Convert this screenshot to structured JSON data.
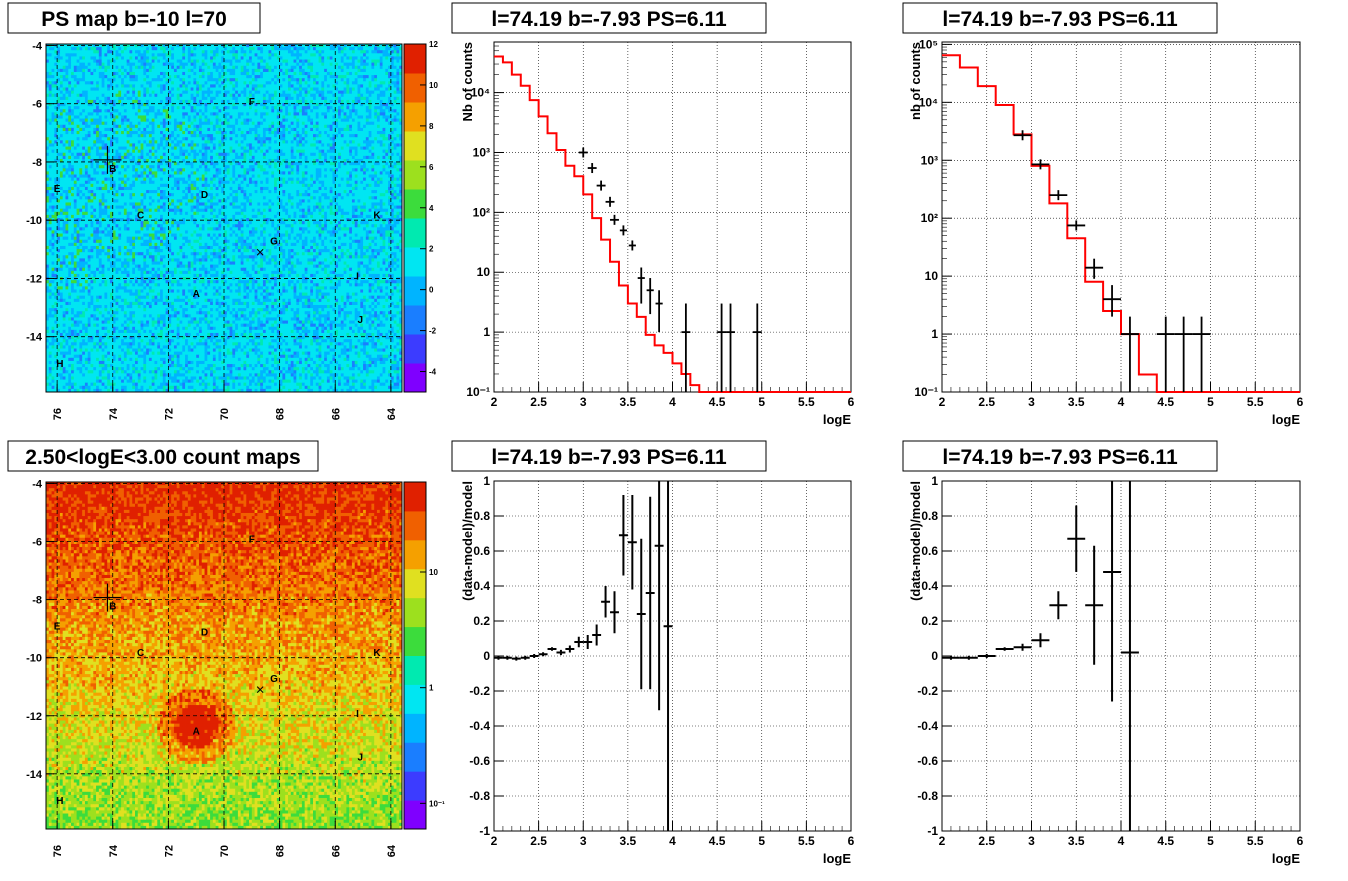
{
  "chart_data": [
    {
      "type": "heatmap",
      "title": "PS map b=-10 l=70",
      "x_ticks": [
        "76",
        "74",
        "72",
        "70",
        "68",
        "66",
        "64"
      ],
      "y_ticks": [
        "-4",
        "-6",
        "-8",
        "-10",
        "-12",
        "-14"
      ],
      "xlim": [
        76.4,
        63.6
      ],
      "ylim": [
        -15.9,
        -3.95
      ],
      "colorbar": {
        "ticks": [
          "12",
          "10",
          "8",
          "6",
          "4",
          "2",
          "0",
          "-2",
          "-4"
        ],
        "range": [
          -5,
          12
        ]
      },
      "source_labels": [
        {
          "name": "F",
          "l": 69.0,
          "b": -5.9
        },
        {
          "name": "B",
          "l": 74.0,
          "b": -8.2
        },
        {
          "name": "E",
          "l": 76.0,
          "b": -8.9
        },
        {
          "name": "D",
          "l": 70.7,
          "b": -9.1
        },
        {
          "name": "C",
          "l": 73.0,
          "b": -9.8
        },
        {
          "name": "K",
          "l": 64.5,
          "b": -9.8
        },
        {
          "name": "G",
          "l": 68.2,
          "b": -10.7
        },
        {
          "name": "I",
          "l": 65.2,
          "b": -11.9
        },
        {
          "name": "A",
          "l": 71.0,
          "b": -12.5
        },
        {
          "name": "J",
          "l": 65.1,
          "b": -13.4
        },
        {
          "name": "H",
          "l": 75.9,
          "b": -14.9
        }
      ],
      "cross_marker": {
        "l": 74.19,
        "b": -7.93
      },
      "x_marker": {
        "l": 68.7,
        "b": -11.1
      },
      "palette": [
        "#7f00ff",
        "#3c3cff",
        "#1a7eff",
        "#00b4ff",
        "#00e6f2",
        "#00eab0",
        "#3cdc3c",
        "#9de01e",
        "#e0e020",
        "#f5a000",
        "#f06000",
        "#e02000"
      ]
    },
    {
      "type": "line",
      "title": "l=74.19 b=-7.93 PS=6.11",
      "xlabel": "logE",
      "ylabel": "Nb of counts",
      "yscale": "log",
      "xlim": [
        2,
        6
      ],
      "ylim": [
        0.1,
        70000
      ],
      "x_ticks": [
        "2",
        "2.5",
        "3",
        "3.5",
        "4",
        "4.5",
        "5",
        "5.5",
        "6"
      ],
      "y_ticks": [
        {
          "v": 0.1,
          "label": "10⁻¹"
        },
        {
          "v": 1,
          "label": "1"
        },
        {
          "v": 10,
          "label": "10"
        },
        {
          "v": 100,
          "label": "10²"
        },
        {
          "v": 1000,
          "label": "10³"
        },
        {
          "v": 10000,
          "label": "10⁴"
        }
      ],
      "model": {
        "color": "#ff0000",
        "edges": [
          2.0,
          2.1,
          2.2,
          2.3,
          2.4,
          2.5,
          2.6,
          2.7,
          2.8,
          2.9,
          3.0,
          3.1,
          3.2,
          3.3,
          3.4,
          3.5,
          3.6,
          3.7,
          3.8,
          3.9,
          4.0,
          4.1,
          4.2,
          4.3,
          4.4,
          4.5,
          4.6,
          4.7,
          4.8,
          4.9,
          5.0,
          6.0
        ],
        "values": [
          40000,
          32000,
          20000,
          13000,
          7500,
          4000,
          2100,
          1100,
          600,
          400,
          200,
          80,
          35,
          15,
          6,
          3,
          1.8,
          0.9,
          0.6,
          0.45,
          0.3,
          0.2,
          0.13,
          0.1,
          0.1,
          0.1,
          0.1,
          0.1,
          0.1,
          0.1,
          0.1
        ]
      },
      "data": [
        {
          "x": 3.0,
          "y": 1000,
          "xerr": 0.05
        },
        {
          "x": 3.1,
          "y": 550,
          "xerr": 0.05
        },
        {
          "x": 3.2,
          "y": 280,
          "xerr": 0.05
        },
        {
          "x": 3.3,
          "y": 150,
          "xerr": 0.05
        },
        {
          "x": 3.35,
          "y": 75,
          "xerr": 0.05
        },
        {
          "x": 3.45,
          "y": 50,
          "xerr": 0.04
        },
        {
          "x": 3.55,
          "y": 28,
          "xerr": 0.04
        },
        {
          "x": 3.65,
          "y": 8,
          "yerr_lo": 3,
          "yerr_hi": 12,
          "xerr": 0.04
        },
        {
          "x": 3.75,
          "y": 5,
          "yerr_lo": 2,
          "yerr_hi": 8,
          "xerr": 0.04
        },
        {
          "x": 3.85,
          "y": 3,
          "yerr_lo": 1,
          "yerr_hi": 5,
          "xerr": 0.04
        },
        {
          "x": 4.15,
          "y": 1,
          "yerr_lo": 0.1,
          "yerr_hi": 3,
          "xerr": 0.05
        },
        {
          "x": 4.55,
          "y": 1,
          "yerr_lo": 0.1,
          "yerr_hi": 3,
          "xerr": 0.05
        },
        {
          "x": 4.65,
          "y": 1,
          "yerr_lo": 0.1,
          "yerr_hi": 3,
          "xerr": 0.05
        },
        {
          "x": 4.95,
          "y": 1,
          "yerr_lo": 0.1,
          "yerr_hi": 3,
          "xerr": 0.05
        }
      ]
    },
    {
      "type": "line",
      "title": "l=74.19 b=-7.93 PS=6.11",
      "xlabel": "logE",
      "ylabel": "nb of counts",
      "yscale": "log",
      "xlim": [
        2,
        6
      ],
      "ylim": [
        0.1,
        110000
      ],
      "x_ticks": [
        "2",
        "2.5",
        "3",
        "3.5",
        "4",
        "4.5",
        "5",
        "5.5",
        "6"
      ],
      "y_ticks": [
        {
          "v": 0.1,
          "label": "10⁻¹"
        },
        {
          "v": 1,
          "label": "1"
        },
        {
          "v": 10,
          "label": "10"
        },
        {
          "v": 100,
          "label": "10²"
        },
        {
          "v": 1000,
          "label": "10³"
        },
        {
          "v": 10000,
          "label": "10⁴"
        },
        {
          "v": 100000,
          "label": "10⁵"
        }
      ],
      "model": {
        "color": "#ff0000",
        "edges": [
          2.0,
          2.2,
          2.4,
          2.6,
          2.8,
          3.0,
          3.2,
          3.4,
          3.6,
          3.8,
          4.0,
          4.2,
          4.4,
          6.0
        ],
        "values": [
          65000,
          40000,
          19000,
          9000,
          2800,
          800,
          180,
          45,
          8,
          2.5,
          1,
          0.2,
          0.1
        ]
      },
      "data": [
        {
          "x": 2.9,
          "y": 2700,
          "xerr": 0.1
        },
        {
          "x": 3.1,
          "y": 850,
          "xerr": 0.1
        },
        {
          "x": 3.3,
          "y": 250,
          "xerr": 0.1
        },
        {
          "x": 3.5,
          "y": 75,
          "xerr": 0.1
        },
        {
          "x": 3.7,
          "y": 14,
          "yerr_lo": 9,
          "yerr_hi": 20,
          "xerr": 0.1
        },
        {
          "x": 3.9,
          "y": 4,
          "yerr_lo": 2,
          "yerr_hi": 7,
          "xerr": 0.1
        },
        {
          "x": 4.1,
          "y": 1,
          "yerr_lo": 0.1,
          "yerr_hi": 2,
          "xerr": 0.1
        },
        {
          "x": 4.5,
          "y": 1,
          "yerr_lo": 0.1,
          "yerr_hi": 2,
          "xerr": 0.1
        },
        {
          "x": 4.7,
          "y": 1,
          "yerr_lo": 0.1,
          "yerr_hi": 2,
          "xerr": 0.1
        },
        {
          "x": 4.9,
          "y": 1,
          "yerr_lo": 0.1,
          "yerr_hi": 2,
          "xerr": 0.1
        }
      ]
    },
    {
      "type": "heatmap",
      "title": "2.50<logE<3.00 count maps",
      "x_ticks": [
        "76",
        "74",
        "72",
        "70",
        "68",
        "66",
        "64"
      ],
      "y_ticks": [
        "-4",
        "-6",
        "-8",
        "-10",
        "-12",
        "-14"
      ],
      "xlim": [
        76.4,
        63.6
      ],
      "ylim": [
        -15.9,
        -3.95
      ],
      "colorbar": {
        "log": true,
        "ticks": [
          {
            "v": 10,
            "label": "10"
          },
          {
            "v": 1,
            "label": "1"
          },
          {
            "v": 0.1,
            "label": "10⁻¹"
          }
        ],
        "range": [
          0.06,
          60
        ]
      },
      "source_labels": [
        {
          "name": "F",
          "l": 69.0,
          "b": -5.9
        },
        {
          "name": "B",
          "l": 74.0,
          "b": -8.2
        },
        {
          "name": "E",
          "l": 76.0,
          "b": -8.9
        },
        {
          "name": "D",
          "l": 70.7,
          "b": -9.1
        },
        {
          "name": "C",
          "l": 73.0,
          "b": -9.8
        },
        {
          "name": "K",
          "l": 64.5,
          "b": -9.8
        },
        {
          "name": "G",
          "l": 68.2,
          "b": -10.7
        },
        {
          "name": "I",
          "l": 65.2,
          "b": -11.9
        },
        {
          "name": "A",
          "l": 71.0,
          "b": -12.5
        },
        {
          "name": "J",
          "l": 65.1,
          "b": -13.4
        },
        {
          "name": "H",
          "l": 75.9,
          "b": -14.9
        }
      ],
      "cross_marker": {
        "l": 74.19,
        "b": -7.93
      },
      "x_marker": {
        "l": 68.7,
        "b": -11.1
      },
      "palette": [
        "#7f00ff",
        "#3c3cff",
        "#1a7eff",
        "#00b4ff",
        "#00e6f2",
        "#00eab0",
        "#3cdc3c",
        "#9de01e",
        "#e0e020",
        "#f5a000",
        "#f06000",
        "#e02000"
      ]
    },
    {
      "type": "scatter",
      "title": "l=74.19 b=-7.93 PS=6.11",
      "xlabel": "logE",
      "ylabel": "(data-model)/model",
      "xlim": [
        2,
        6
      ],
      "ylim": [
        -1,
        1
      ],
      "x_ticks": [
        "2",
        "2.5",
        "3",
        "3.5",
        "4",
        "4.5",
        "5",
        "5.5",
        "6"
      ],
      "y_ticks": [
        "-1",
        "-0.8",
        "-0.6",
        "-0.4",
        "-0.2",
        "0",
        "0.2",
        "0.4",
        "0.6",
        "0.8",
        "1"
      ],
      "data": [
        {
          "x": 2.05,
          "y": -0.01,
          "yerr": 0.002,
          "xerr": 0.05
        },
        {
          "x": 2.15,
          "y": -0.01,
          "yerr": 0.002,
          "xerr": 0.05
        },
        {
          "x": 2.25,
          "y": -0.015,
          "yerr": 0.003,
          "xerr": 0.05
        },
        {
          "x": 2.35,
          "y": -0.01,
          "yerr": 0.004,
          "xerr": 0.05
        },
        {
          "x": 2.45,
          "y": 0.0,
          "yerr": 0.005,
          "xerr": 0.05
        },
        {
          "x": 2.55,
          "y": 0.01,
          "yerr": 0.007,
          "xerr": 0.05
        },
        {
          "x": 2.65,
          "y": 0.04,
          "yerr": 0.01,
          "xerr": 0.05
        },
        {
          "x": 2.75,
          "y": 0.02,
          "yerr": 0.015,
          "xerr": 0.05
        },
        {
          "x": 2.85,
          "y": 0.04,
          "yerr": 0.02,
          "xerr": 0.05
        },
        {
          "x": 2.95,
          "y": 0.08,
          "yerr": 0.03,
          "xerr": 0.05
        },
        {
          "x": 3.05,
          "y": 0.08,
          "yerr": 0.04,
          "xerr": 0.05
        },
        {
          "x": 3.15,
          "y": 0.12,
          "yerr": 0.06,
          "xerr": 0.05
        },
        {
          "x": 3.25,
          "y": 0.31,
          "yerr": 0.09,
          "xerr": 0.05
        },
        {
          "x": 3.35,
          "y": 0.25,
          "yerr": 0.12,
          "xerr": 0.05
        },
        {
          "x": 3.45,
          "y": 0.69,
          "yerr": 0.23,
          "xerr": 0.05
        },
        {
          "x": 3.55,
          "y": 0.65,
          "yerr": 0.27,
          "xerr": 0.05
        },
        {
          "x": 3.65,
          "y": 0.24,
          "yerr": 0.43,
          "xerr": 0.05
        },
        {
          "x": 3.75,
          "y": 0.36,
          "yerr": 0.55,
          "xerr": 0.05
        },
        {
          "x": 3.85,
          "y": 0.63,
          "yerr": 0.94,
          "xerr": 0.05
        },
        {
          "x": 3.95,
          "y": 0.17,
          "yerr": 1.5,
          "xerr": 0.05
        }
      ]
    },
    {
      "type": "scatter",
      "title": "l=74.19 b=-7.93 PS=6.11",
      "xlabel": "logE",
      "ylabel": "(data-model)/model",
      "xlim": [
        2,
        6
      ],
      "ylim": [
        -1,
        1
      ],
      "x_ticks": [
        "2",
        "2.5",
        "3",
        "3.5",
        "4",
        "4.5",
        "5",
        "5.5",
        "6"
      ],
      "y_ticks": [
        "-1",
        "-0.8",
        "-0.6",
        "-0.4",
        "-0.2",
        "0",
        "0.2",
        "0.4",
        "0.6",
        "0.8",
        "1"
      ],
      "data": [
        {
          "x": 2.1,
          "y": -0.01,
          "yerr": 0.003,
          "xerr": 0.1
        },
        {
          "x": 2.3,
          "y": -0.01,
          "yerr": 0.004,
          "xerr": 0.1
        },
        {
          "x": 2.5,
          "y": 0.0,
          "yerr": 0.007,
          "xerr": 0.1
        },
        {
          "x": 2.7,
          "y": 0.04,
          "yerr": 0.01,
          "xerr": 0.1
        },
        {
          "x": 2.9,
          "y": 0.05,
          "yerr": 0.02,
          "xerr": 0.1
        },
        {
          "x": 3.1,
          "y": 0.09,
          "yerr": 0.04,
          "xerr": 0.1
        },
        {
          "x": 3.3,
          "y": 0.29,
          "yerr": 0.08,
          "xerr": 0.1
        },
        {
          "x": 3.5,
          "y": 0.67,
          "yerr": 0.19,
          "xerr": 0.1
        },
        {
          "x": 3.7,
          "y": 0.29,
          "yerr": 0.34,
          "xerr": 0.1
        },
        {
          "x": 3.9,
          "y": 0.48,
          "yerr": 0.74,
          "xerr": 0.1
        },
        {
          "x": 4.1,
          "y": 0.02,
          "yerr": 1.5,
          "xerr": 0.1
        }
      ]
    }
  ]
}
